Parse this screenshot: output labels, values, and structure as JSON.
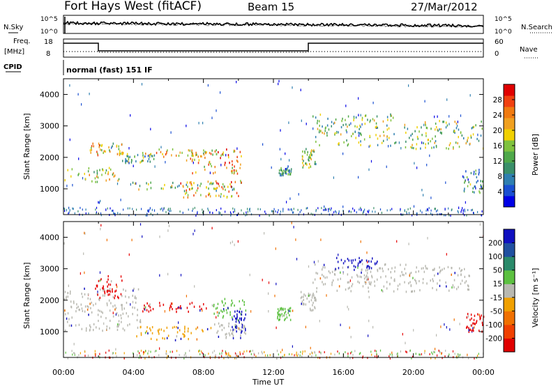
{
  "header": {
    "station": "Fort Hays West (fitACF)",
    "beam": "Beam 15",
    "date": "27/Mar/2012"
  },
  "top_panels": {
    "nsky_label": "N.Sky",
    "nsearch_label": "N.Search",
    "noise_ticks": [
      "10^5",
      "10^0"
    ],
    "freq_label_line1": "Freq.",
    "freq_label_line2": "[MHz]",
    "freq_ticks": [
      "18",
      "8"
    ],
    "nave_label": "Nave",
    "nave_ticks": [
      "60",
      "0"
    ],
    "cpid_label": "CPID",
    "cpid_value": "normal (fast) 151 IF"
  },
  "chart_data": [
    {
      "type": "heatmap",
      "name": "power",
      "xlabel": "Time UT",
      "ylabel": "Slant Range [km]",
      "x_ticks": [
        "00:00",
        "04:00",
        "08:00",
        "12:00",
        "16:00",
        "20:00",
        "00:00"
      ],
      "y_ticks": [
        "1000",
        "2000",
        "3000",
        "4000"
      ],
      "ylim": [
        180,
        4500
      ],
      "colorbar_label": "Power [dB]",
      "colorbar_ticks": [
        "4",
        "8",
        "12",
        "16",
        "20",
        "24",
        "28"
      ],
      "colorbar_colors": [
        "#0000e6",
        "#1a4fd1",
        "#2f7fb0",
        "#3a8f6a",
        "#4fa84a",
        "#7fc23e",
        "#f0d000",
        "#f0a020",
        "#f07a10",
        "#f04010",
        "#e00000"
      ],
      "regions": [
        {
          "t0": 0.0,
          "t1": 3.2,
          "r0": 1250,
          "r1": 1700,
          "level": 0.55
        },
        {
          "t0": 1.5,
          "t1": 3.4,
          "r0": 2100,
          "r1": 2500,
          "level": 0.6
        },
        {
          "t0": 3.3,
          "t1": 5.2,
          "r0": 1850,
          "r1": 2150,
          "level": 0.4
        },
        {
          "t0": 4.5,
          "t1": 8.8,
          "r0": 2050,
          "r1": 2300,
          "level": 0.6
        },
        {
          "t0": 7.0,
          "t1": 10.2,
          "r0": 1500,
          "r1": 2300,
          "level": 0.7
        },
        {
          "t0": 3.8,
          "t1": 10.2,
          "r0": 950,
          "r1": 1250,
          "level": 0.45
        },
        {
          "t0": 6.5,
          "t1": 10.3,
          "r0": 750,
          "r1": 1300,
          "level": 0.7
        },
        {
          "t0": 12.3,
          "t1": 13.0,
          "r0": 1450,
          "r1": 1750,
          "level": 0.3
        },
        {
          "t0": 13.6,
          "t1": 14.4,
          "r0": 1700,
          "r1": 2300,
          "level": 0.45
        },
        {
          "t0": 14.2,
          "t1": 19.0,
          "r0": 2400,
          "r1": 3400,
          "level": 0.45
        },
        {
          "t0": 19.4,
          "t1": 24.0,
          "r0": 2300,
          "r1": 3200,
          "level": 0.45
        },
        {
          "t0": 22.8,
          "t1": 24.0,
          "r0": 900,
          "r1": 1700,
          "level": 0.3
        }
      ]
    },
    {
      "type": "heatmap",
      "name": "velocity",
      "xlabel": "Time UT",
      "ylabel": "Slant Range [km]",
      "x_ticks": [
        "00:00",
        "04:00",
        "08:00",
        "12:00",
        "16:00",
        "20:00",
        "00:00"
      ],
      "y_ticks": [
        "1000",
        "2000",
        "3000",
        "4000"
      ],
      "ylim": [
        180,
        4500
      ],
      "colorbar_label": "Velocity [m s⁻¹]",
      "colorbar_ticks": [
        "200",
        "100",
        "50",
        "15",
        "-15",
        "-50",
        "-100",
        "-200"
      ],
      "colorbar_colors": [
        "#1010c0",
        "#2050a0",
        "#2a8a6a",
        "#5cc040",
        "#b8b8b0",
        "#f0a000",
        "#f07000",
        "#f04000",
        "#e00000"
      ],
      "regions": [
        {
          "t0": 0.0,
          "t1": 4.4,
          "r0": 1050,
          "r1": 2400,
          "color": "#b8b8b0"
        },
        {
          "t0": 1.8,
          "t1": 3.4,
          "r0": 2100,
          "r1": 2800,
          "color": "#e60000"
        },
        {
          "t0": 4.4,
          "t1": 8.5,
          "r0": 1650,
          "r1": 1950,
          "color": "#e60000"
        },
        {
          "t0": 8.5,
          "t1": 10.5,
          "r0": 1450,
          "r1": 2100,
          "color": "#5cc040"
        },
        {
          "t0": 3.8,
          "t1": 8.5,
          "r0": 750,
          "r1": 1200,
          "color": "#f0a000"
        },
        {
          "t0": 8.5,
          "t1": 10.4,
          "r0": 800,
          "r1": 1300,
          "color": "#b8b8b0"
        },
        {
          "t0": 9.6,
          "t1": 10.4,
          "r0": 1000,
          "r1": 1700,
          "color": "#1010c0"
        },
        {
          "t0": 12.2,
          "t1": 13.1,
          "r0": 1400,
          "r1": 1800,
          "color": "#5cc040"
        },
        {
          "t0": 13.5,
          "t1": 14.4,
          "r0": 1700,
          "r1": 2300,
          "color": "#b8b8b0"
        },
        {
          "t0": 14.2,
          "t1": 23.2,
          "r0": 2300,
          "r1": 3200,
          "color": "#b8b8b0"
        },
        {
          "t0": 15.5,
          "t1": 18.0,
          "r0": 3000,
          "r1": 3400,
          "color": "#1010c0"
        },
        {
          "t0": 23.0,
          "t1": 24.0,
          "r0": 1000,
          "r1": 1600,
          "color": "#e60000"
        }
      ]
    }
  ]
}
